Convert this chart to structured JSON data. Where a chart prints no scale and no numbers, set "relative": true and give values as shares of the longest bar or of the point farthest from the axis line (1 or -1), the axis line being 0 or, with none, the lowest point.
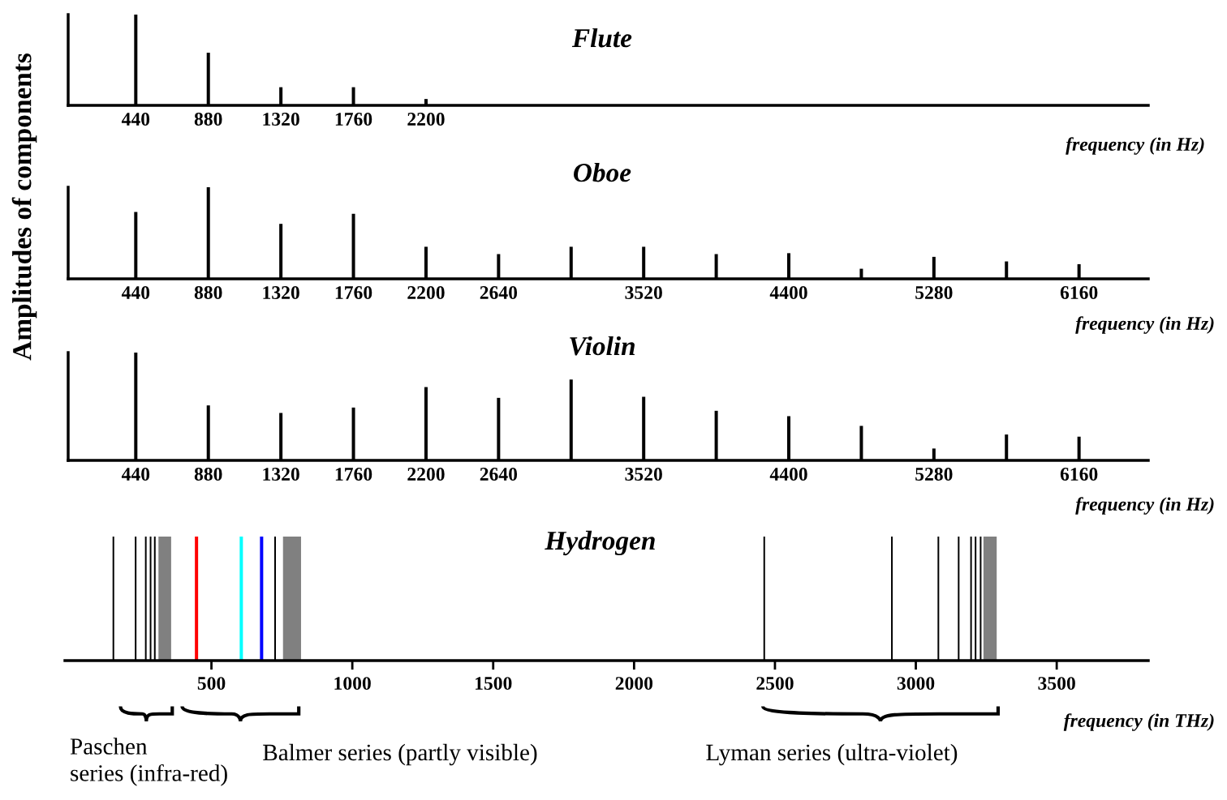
{
  "chart_data": [
    {
      "type": "bar",
      "title": "Flute",
      "ylabel": "Amplitudes of components",
      "xlabel": "frequency (in Hz)",
      "relative": true,
      "color": "#000000",
      "x": [
        440,
        880,
        1320,
        1760,
        2200
      ],
      "values": [
        1,
        0.58,
        0.2,
        0.2,
        0.07
      ],
      "xlim": [
        30,
        6580
      ],
      "xticks": [
        440,
        880,
        1320,
        1760,
        2200
      ]
    },
    {
      "type": "bar",
      "title": "Oboe",
      "xlabel": "frequency (in Hz)",
      "relative": true,
      "color": "#000000",
      "x": [
        440,
        880,
        1320,
        1760,
        2200,
        2640,
        3080,
        3520,
        3960,
        4400,
        4840,
        5280,
        5720,
        6160
      ],
      "values": [
        0.73,
        1,
        0.6,
        0.71,
        0.35,
        0.27,
        0.35,
        0.35,
        0.27,
        0.28,
        0.11,
        0.24,
        0.19,
        0.16
      ],
      "xlim": [
        30,
        6580
      ],
      "xticks": [
        440,
        880,
        1320,
        1760,
        2200,
        2640,
        3520,
        4400,
        5280,
        6160
      ]
    },
    {
      "type": "bar",
      "title": "Violin",
      "xlabel": "frequency (in Hz)",
      "relative": true,
      "color": "#000000",
      "x": [
        440,
        880,
        1320,
        1760,
        2200,
        2640,
        3080,
        3520,
        3960,
        4400,
        4840,
        5280,
        5720,
        6160
      ],
      "values": [
        1,
        0.51,
        0.44,
        0.49,
        0.68,
        0.58,
        0.75,
        0.59,
        0.46,
        0.41,
        0.32,
        0.11,
        0.24,
        0.22
      ],
      "xlim": [
        30,
        6580
      ],
      "xticks": [
        440,
        880,
        1320,
        1760,
        2200,
        2640,
        3520,
        4400,
        5280,
        6160
      ]
    },
    {
      "type": "bar",
      "title": "Hydrogen",
      "xlabel": "frequency (in THz)",
      "relative": true,
      "x": [
        152,
        231,
        267,
        284,
        299,
        447,
        606,
        678,
        726,
        2462,
        2915,
        3080,
        3152,
        3196,
        3212,
        3230
      ],
      "values": [
        1,
        1,
        1,
        1,
        1,
        1,
        1,
        1,
        1,
        1,
        1,
        1,
        1,
        1,
        1,
        1
      ],
      "colors": [
        "#000000",
        "#000000",
        "#000000",
        "#000000",
        "#000000",
        "#ff0000",
        "#00ffff",
        "#0000ff",
        "#000000",
        "#000000",
        "#000000",
        "#000000",
        "#000000",
        "#000000",
        "#000000",
        "#000000"
      ],
      "bands": [
        {
          "axis": "x",
          "from": 312,
          "to": 357,
          "color": "#808080"
        },
        {
          "axis": "x",
          "from": 754,
          "to": 818,
          "color": "#808080"
        },
        {
          "axis": "x",
          "from": 3240,
          "to": 3287,
          "color": "#808080"
        }
      ],
      "xlim": [
        -20,
        3825
      ],
      "xticks": [
        500,
        1000,
        1500,
        2000,
        2500,
        3000,
        3500
      ],
      "annotations": [
        "Paschen\nseries (infra-red)",
        "Balmer series (partly visible)",
        "Lyman series (ultra-violet)"
      ]
    }
  ]
}
